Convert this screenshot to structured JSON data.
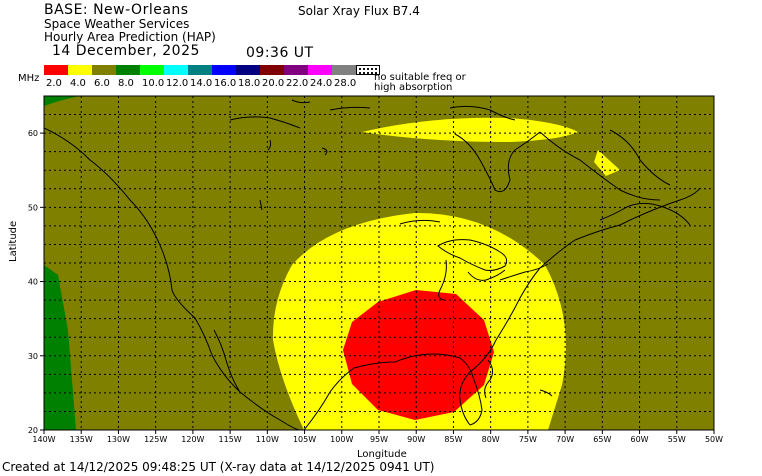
{
  "header": {
    "base": "BASE: New-Orleans",
    "service": "Space Weather Services",
    "product": "Hourly Area Prediction (HAP)",
    "date": "14 December, 2025",
    "time": "09:36 UT",
    "flux": "Solar Xray Flux B7.4"
  },
  "legend": {
    "unit": "MHz",
    "swatches": [
      {
        "label": "2.0",
        "color": "#ff0000"
      },
      {
        "label": "4.0",
        "color": "#ffff00"
      },
      {
        "label": "6.0",
        "color": "#808000"
      },
      {
        "label": "8.0",
        "color": "#008000"
      },
      {
        "label": "10.0",
        "color": "#00ff00"
      },
      {
        "label": "12.0",
        "color": "#00ffff"
      },
      {
        "label": "14.0",
        "color": "#008080"
      },
      {
        "label": "16.0",
        "color": "#0000ff"
      },
      {
        "label": "18.0",
        "color": "#000080"
      },
      {
        "label": "20.0",
        "color": "#800000"
      },
      {
        "label": "22.0",
        "color": "#800080"
      },
      {
        "label": "24.0",
        "color": "#ff00ff"
      },
      {
        "label": "28.0",
        "color": "#808080"
      }
    ],
    "no_freq_line1": "no suitable freq or",
    "no_freq_line2": "high absorption"
  },
  "map": {
    "xlabel": "Longitude",
    "ylabel": "Latitude",
    "lon_range": [
      -140,
      -50
    ],
    "lat_range": [
      20,
      65
    ],
    "lon_ticks": [
      "140W",
      "135W",
      "130W",
      "125W",
      "120W",
      "115W",
      "110W",
      "105W",
      "100W",
      "95W",
      "90W",
      "85W",
      "80W",
      "75W",
      "70W",
      "65W",
      "60W",
      "55W",
      "50W"
    ],
    "lat_ticks": [
      "20",
      "30",
      "40",
      "50",
      "60"
    ],
    "background_color": "#808000",
    "regions": {
      "yellow_center": {
        "lon": -90,
        "lat": 34
      },
      "red_center": {
        "lon": -90,
        "lat": 30
      },
      "yellow_color": "#ffff00",
      "red_color": "#ff0000",
      "green_color": "#008000"
    }
  },
  "footer": "Created at 14/12/2025 09:48:25 UT (X-ray data at 14/12/2025 0941 UT)"
}
